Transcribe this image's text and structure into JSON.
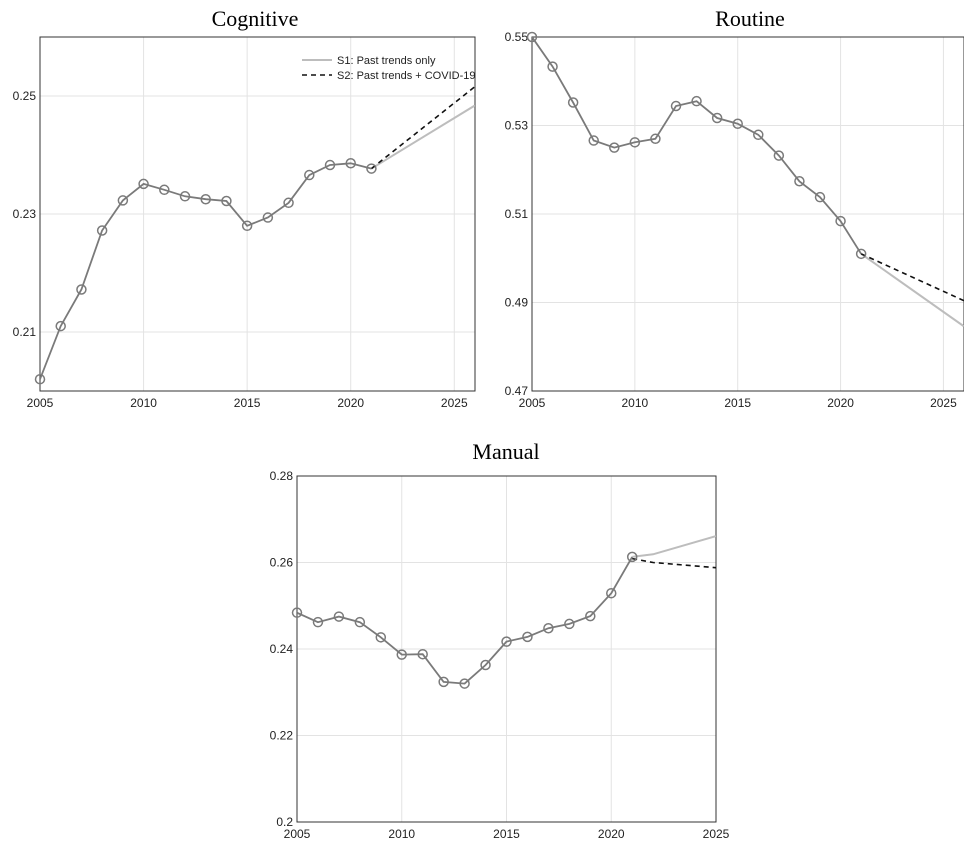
{
  "chart_data": [
    {
      "type": "line",
      "title": "Cognitive",
      "xlim": [
        2005,
        2026
      ],
      "ylim": [
        0.2,
        0.26
      ],
      "xticks": [
        2005,
        2010,
        2015,
        2020,
        2025
      ],
      "yticks": [
        0.21,
        0.23,
        0.25
      ],
      "ytick_labels": [
        "0.21",
        "0.23",
        "0.25"
      ],
      "grid": true,
      "legend": {
        "position": "top-right",
        "entries": [
          "S1: Past trends only",
          "S2: Past trends + COVID-19"
        ]
      },
      "series": [
        {
          "key": "hist",
          "x": [
            2005,
            2006,
            2007,
            2008,
            2009,
            2010,
            2011,
            2012,
            2013,
            2014,
            2015,
            2016,
            2017,
            2018,
            2019,
            2020,
            2021
          ],
          "y": [
            0.202,
            0.211,
            0.2172,
            0.2272,
            0.2323,
            0.2351,
            0.2341,
            0.233,
            0.2325,
            0.2322,
            0.228,
            0.2294,
            0.2319,
            0.2366,
            0.2383,
            0.2386,
            0.2377
          ]
        },
        {
          "key": "s1",
          "name": "S1: Past trends only",
          "x": [
            2021,
            2026
          ],
          "y": [
            0.2377,
            0.2484
          ]
        },
        {
          "key": "s2",
          "name": "S2: Past trends + COVID-19",
          "x": [
            2021,
            2026
          ],
          "y": [
            0.2377,
            0.2516
          ]
        }
      ]
    },
    {
      "type": "line",
      "title": "Routine",
      "xlim": [
        2005,
        2026
      ],
      "ylim": [
        0.47,
        0.55
      ],
      "xticks": [
        2005,
        2010,
        2015,
        2020,
        2025
      ],
      "yticks": [
        0.47,
        0.49,
        0.51,
        0.53,
        0.55
      ],
      "ytick_labels": [
        "0.47",
        "0.49",
        "0.51",
        "0.53",
        "0.55"
      ],
      "grid": true,
      "series": [
        {
          "key": "hist",
          "x": [
            2005,
            2006,
            2007,
            2008,
            2009,
            2010,
            2011,
            2012,
            2013,
            2014,
            2015,
            2016,
            2017,
            2018,
            2019,
            2020,
            2021
          ],
          "y": [
            0.55,
            0.5433,
            0.5352,
            0.5266,
            0.525,
            0.5262,
            0.527,
            0.5344,
            0.5355,
            0.5317,
            0.5304,
            0.5279,
            0.5232,
            0.5174,
            0.5138,
            0.5084,
            0.501
          ]
        },
        {
          "key": "s1",
          "name": "S1: Past trends only",
          "x": [
            2021,
            2026
          ],
          "y": [
            0.501,
            0.4846
          ]
        },
        {
          "key": "s2",
          "name": "S2: Past trends + COVID-19",
          "x": [
            2021,
            2026
          ],
          "y": [
            0.501,
            0.4904
          ]
        }
      ]
    },
    {
      "type": "line",
      "title": "Manual",
      "xlim": [
        2005,
        2025
      ],
      "ylim": [
        0.2,
        0.28
      ],
      "xticks": [
        2005,
        2010,
        2015,
        2020,
        2025
      ],
      "yticks": [
        0.2,
        0.22,
        0.24,
        0.26,
        0.28
      ],
      "ytick_labels": [
        "0.2",
        "0.22",
        "0.24",
        "0.26",
        "0.28"
      ],
      "grid": true,
      "series": [
        {
          "key": "hist",
          "x": [
            2005,
            2006,
            2007,
            2008,
            2009,
            2010,
            2011,
            2012,
            2013,
            2014,
            2015,
            2016,
            2017,
            2018,
            2019,
            2020,
            2021
          ],
          "y": [
            0.2484,
            0.2462,
            0.2475,
            0.2462,
            0.2427,
            0.2387,
            0.2388,
            0.2324,
            0.232,
            0.2363,
            0.2417,
            0.2428,
            0.2448,
            0.2458,
            0.2476,
            0.2529,
            0.2613
          ]
        },
        {
          "key": "s1",
          "name": "S1: Past trends only",
          "x": [
            2021,
            2022,
            2025
          ],
          "y": [
            0.2613,
            0.2619,
            0.2661
          ]
        },
        {
          "key": "s2",
          "name": "S2: Past trends + COVID-19",
          "x": [
            2021,
            2022,
            2025
          ],
          "y": [
            0.2609,
            0.26,
            0.2588
          ]
        }
      ]
    }
  ]
}
